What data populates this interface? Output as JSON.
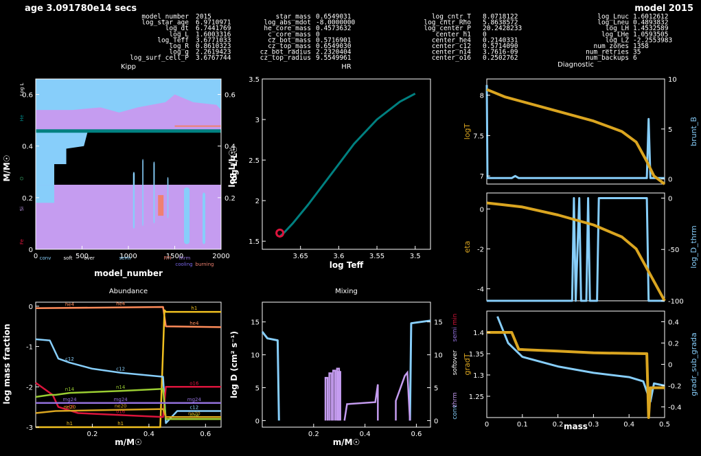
{
  "header": {
    "age_label": "age 3.091780e14 secs",
    "model_label": "model 2015",
    "columns": [
      [
        [
          "model_number",
          "2015"
        ],
        [
          "log_star_age",
          "6.9710971"
        ],
        [
          "log_dt",
          "6.7441769"
        ],
        [
          "log_L",
          "1.6003316"
        ],
        [
          "log_Teff",
          "3.6771033"
        ],
        [
          "log_R",
          "0.8610323"
        ],
        [
          "log_g",
          "2.2619423"
        ],
        [
          "log_surf_cell_P",
          "3.6767744"
        ]
      ],
      [
        [
          "star_mass",
          "0.6549031"
        ],
        [
          "log_abs_mdot",
          "-8.0000000"
        ],
        [
          "he_core_mass",
          "0.4573632"
        ],
        [
          "c_core_mass",
          "0"
        ],
        [
          "cz_bot_mass",
          "0.5716901"
        ],
        [
          "cz_top_mass",
          "0.6549030"
        ],
        [
          "cz_bot_radius",
          "2.2320404"
        ],
        [
          "cz_top_radius",
          "9.5549961"
        ]
      ],
      [
        [
          "log_cntr_T",
          "8.0718122"
        ],
        [
          "log_cntr_Rho",
          "5.8638572"
        ],
        [
          "log_center_P",
          "20.2428233"
        ],
        [
          "center_h1",
          "0"
        ],
        [
          "center_he4",
          "0.2140331"
        ],
        [
          "center_c12",
          "0.5714090"
        ],
        [
          "center_n14",
          "3.7616-09"
        ],
        [
          "center_o16",
          "0.2502762"
        ]
      ],
      [
        [
          "log_Lnuc",
          "1.6012612"
        ],
        [
          "log_Lneu",
          "0.4893832"
        ],
        [
          "log_LH",
          "1.4532589"
        ],
        [
          "log_LHe",
          "1.0593505"
        ],
        [
          "log_LZ",
          "-2.2553983"
        ],
        [
          "num_zones",
          "1358"
        ],
        [
          "num_retries",
          "35"
        ],
        [
          "num_backups",
          "6"
        ]
      ]
    ]
  },
  "chart_data": [
    {
      "panel": "kipp",
      "type": "area",
      "title": "Kipp",
      "xlabel": "model_number",
      "ylabel": "M/M☉",
      "y2label": "log L/L☉",
      "xlim": [
        0,
        2000
      ],
      "ylim": [
        0,
        0.66
      ],
      "xticks": [
        0,
        500,
        1000,
        1500,
        2000
      ],
      "yticks": [
        0,
        0.2,
        0.4,
        0.6
      ],
      "y2ticks": [
        0.2,
        0.4,
        0.6
      ],
      "left_labels": [
        "Log L",
        "He",
        "O",
        "Si",
        "Fe"
      ],
      "bottom_legend": [
        "conv",
        "soft",
        "over",
        "semi",
        "RTI",
        "thrm",
        "burning",
        "cooling"
      ],
      "he_core_mass": 0.457,
      "star_mass": 0.655
    },
    {
      "panel": "hr",
      "type": "line",
      "title": "HR",
      "xlabel": "log Teff",
      "ylabel": "log L/L☉",
      "xlim": [
        3.7,
        3.48
      ],
      "ylim": [
        1.4,
        3.5
      ],
      "xticks": [
        3.65,
        3.6,
        3.55,
        3.5
      ],
      "yticks": [
        1.5,
        2,
        2.5,
        3,
        3.5
      ],
      "track": [
        [
          3.678,
          1.55
        ],
        [
          3.672,
          1.6
        ],
        [
          3.66,
          1.72
        ],
        [
          3.64,
          1.95
        ],
        [
          3.62,
          2.2
        ],
        [
          3.6,
          2.45
        ],
        [
          3.58,
          2.7
        ],
        [
          3.55,
          3.0
        ],
        [
          3.52,
          3.22
        ],
        [
          3.5,
          3.32
        ]
      ],
      "current": [
        3.677,
        1.6
      ]
    },
    {
      "panel": "diagnostic",
      "type": "line",
      "title": "Diagnostic",
      "xlabel": "mass",
      "xlim": [
        0,
        0.5
      ],
      "xticks": [
        0,
        0.1,
        0.2,
        0.3,
        0.4,
        0.5
      ],
      "subplots": [
        {
          "left": {
            "label": "logT",
            "ylim": [
              6.9,
              8.2
            ],
            "ticks": [
              7,
              7.5,
              8
            ],
            "points": [
              [
                0,
                8.07
              ],
              [
                0.05,
                7.98
              ],
              [
                0.1,
                7.92
              ],
              [
                0.2,
                7.8
              ],
              [
                0.3,
                7.68
              ],
              [
                0.38,
                7.55
              ],
              [
                0.42,
                7.42
              ],
              [
                0.45,
                7.18
              ],
              [
                0.47,
                7.0
              ],
              [
                0.5,
                6.9
              ]
            ]
          },
          "right": {
            "label": "brunt_B",
            "ylim": [
              -0.5,
              10
            ],
            "ticks": [
              0,
              5,
              10
            ],
            "points": [
              [
                0,
                9.4
              ],
              [
                0.002,
                0.1
              ],
              [
                0.07,
                0.1
              ],
              [
                0.08,
                0.3
              ],
              [
                0.09,
                0.1
              ],
              [
                0.45,
                0.1
              ],
              [
                0.455,
                6.0
              ],
              [
                0.46,
                0.1
              ],
              [
                0.5,
                0.1
              ]
            ]
          }
        },
        {
          "left": {
            "label": "eta",
            "ylim": [
              -4.6,
              0.8
            ],
            "ticks": [
              -4,
              -2,
              0
            ],
            "points": [
              [
                0,
                0.3
              ],
              [
                0.05,
                0.2
              ],
              [
                0.1,
                0.1
              ],
              [
                0.2,
                -0.3
              ],
              [
                0.3,
                -0.8
              ],
              [
                0.38,
                -1.4
              ],
              [
                0.42,
                -2.0
              ],
              [
                0.46,
                -3.3
              ],
              [
                0.5,
                -4.6
              ]
            ]
          },
          "right": {
            "label": "log_D_thrm",
            "ylim": [
              -100,
              5
            ],
            "ticks": [
              -100,
              -50,
              0
            ],
            "points": [
              [
                0,
                -100
              ],
              [
                0.24,
                -100
              ],
              [
                0.245,
                0
              ],
              [
                0.25,
                -100
              ],
              [
                0.26,
                0
              ],
              [
                0.265,
                -100
              ],
              [
                0.28,
                -100
              ],
              [
                0.285,
                0
              ],
              [
                0.29,
                -100
              ],
              [
                0.31,
                -100
              ],
              [
                0.315,
                0
              ],
              [
                0.32,
                0
              ],
              [
                0.45,
                0
              ],
              [
                0.455,
                -100
              ],
              [
                0.5,
                -100
              ]
            ]
          }
        },
        {
          "left": {
            "label": "gradT",
            "ylim": [
              1.2,
              1.45
            ],
            "ticks": [
              1.25,
              1.3,
              1.35,
              1.4
            ],
            "points": [
              [
                0,
                1.4
              ],
              [
                0.07,
                1.4
              ],
              [
                0.09,
                1.36
              ],
              [
                0.2,
                1.356
              ],
              [
                0.3,
                1.352
              ],
              [
                0.45,
                1.35
              ],
              [
                0.455,
                1.2
              ],
              [
                0.46,
                1.27
              ],
              [
                0.5,
                1.27
              ]
            ]
          },
          "right": {
            "label": "gradr_sub_grada",
            "ylim": [
              -0.5,
              0.5
            ],
            "ticks": [
              -0.4,
              -0.2,
              0,
              0.2,
              0.4
            ],
            "points": [
              [
                0.03,
                0.45
              ],
              [
                0.06,
                0.2
              ],
              [
                0.1,
                0.07
              ],
              [
                0.2,
                -0.02
              ],
              [
                0.3,
                -0.08
              ],
              [
                0.4,
                -0.12
              ],
              [
                0.44,
                -0.16
              ],
              [
                0.46,
                -0.35
              ],
              [
                0.47,
                -0.18
              ],
              [
                0.5,
                -0.2
              ]
            ]
          }
        }
      ]
    },
    {
      "panel": "abundance",
      "type": "line",
      "title": "Abundance",
      "xlabel": "m/M☉",
      "ylabel": "log mass fraction",
      "xlim": [
        0,
        0.655
      ],
      "ylim": [
        -3,
        0.1
      ],
      "xticks": [
        0.2,
        0.4,
        0.6
      ],
      "yticks": [
        -3,
        -2,
        -1,
        0
      ],
      "series": [
        {
          "name": "he4",
          "color": "#ff8c5a",
          "points": [
            [
              0,
              -0.05
            ],
            [
              0.45,
              -0.02
            ],
            [
              0.46,
              -0.5
            ],
            [
              0.655,
              -0.52
            ]
          ]
        },
        {
          "name": "h1",
          "color": "#f0c020",
          "points": [
            [
              0,
              -3.0
            ],
            [
              0.44,
              -3.0
            ],
            [
              0.455,
              -0.1
            ],
            [
              0.46,
              -0.14
            ],
            [
              0.655,
              -0.14
            ]
          ]
        },
        {
          "name": "c12",
          "color": "#87cefa",
          "points": [
            [
              0,
              -0.82
            ],
            [
              0.05,
              -0.85
            ],
            [
              0.08,
              -1.3
            ],
            [
              0.12,
              -1.4
            ],
            [
              0.2,
              -1.55
            ],
            [
              0.3,
              -1.65
            ],
            [
              0.45,
              -1.75
            ],
            [
              0.46,
              -2.9
            ],
            [
              0.5,
              -2.6
            ],
            [
              0.655,
              -2.6
            ]
          ]
        },
        {
          "name": "o16",
          "color": "#dc143c",
          "points": [
            [
              0,
              -1.9
            ],
            [
              0.06,
              -2.2
            ],
            [
              0.08,
              -2.5
            ],
            [
              0.15,
              -2.65
            ],
            [
              0.3,
              -2.7
            ],
            [
              0.45,
              -2.75
            ],
            [
              0.46,
              -2.0
            ],
            [
              0.655,
              -2.0
            ]
          ]
        },
        {
          "name": "n14",
          "color": "#9acd32",
          "points": [
            [
              0,
              -2.25
            ],
            [
              0.05,
              -2.2
            ],
            [
              0.07,
              -2.2
            ],
            [
              0.12,
              -2.15
            ],
            [
              0.3,
              -2.1
            ],
            [
              0.45,
              -2.05
            ],
            [
              0.46,
              -2.8
            ],
            [
              0.655,
              -2.8
            ]
          ]
        },
        {
          "name": "mg24",
          "color": "#9370db",
          "points": [
            [
              0,
              -2.4
            ],
            [
              0.655,
              -2.4
            ]
          ]
        },
        {
          "name": "ne20",
          "color": "#daa520",
          "points": [
            [
              0,
              -2.65
            ],
            [
              0.07,
              -2.6
            ],
            [
              0.45,
              -2.55
            ],
            [
              0.46,
              -2.75
            ],
            [
              0.655,
              -2.75
            ]
          ]
        }
      ]
    },
    {
      "panel": "mixing",
      "type": "line",
      "title": "Mixing",
      "xlabel": "m/M☉",
      "ylabel": "log D (cm² s⁻¹)",
      "xlim": [
        0,
        0.655
      ],
      "ylim": [
        -1,
        18
      ],
      "xticks": [
        0.2,
        0.4,
        0.6
      ],
      "yticks": [
        0,
        5,
        10,
        15
      ],
      "legend": [
        "min",
        "semi",
        "over",
        "soft",
        "conv",
        "thrm"
      ],
      "conv_segments": [
        [
          [
            0.0,
            13.5
          ],
          [
            0.02,
            12.5
          ],
          [
            0.06,
            12.2
          ],
          [
            0.065,
            0
          ]
        ],
        [
          [
            0.575,
            0
          ],
          [
            0.58,
            14.8
          ],
          [
            0.655,
            15.2
          ]
        ]
      ],
      "thrm_segments": [
        [
          0.25,
          7.0
        ],
        [
          0.27,
          7.5
        ],
        [
          0.285,
          7.8
        ],
        [
          0.3,
          7.5
        ],
        [
          0.35,
          5.5
        ],
        [
          0.45,
          5.5
        ],
        [
          0.52,
          5.5
        ],
        [
          0.56,
          7.0
        ]
      ]
    }
  ],
  "colors": {
    "background": "#000000",
    "light_blue": "#87cefa",
    "purple": "#c59cf0",
    "salmon": "#f08070",
    "teal": "#008080",
    "gold": "#daa520",
    "crimson": "#dc143c"
  }
}
